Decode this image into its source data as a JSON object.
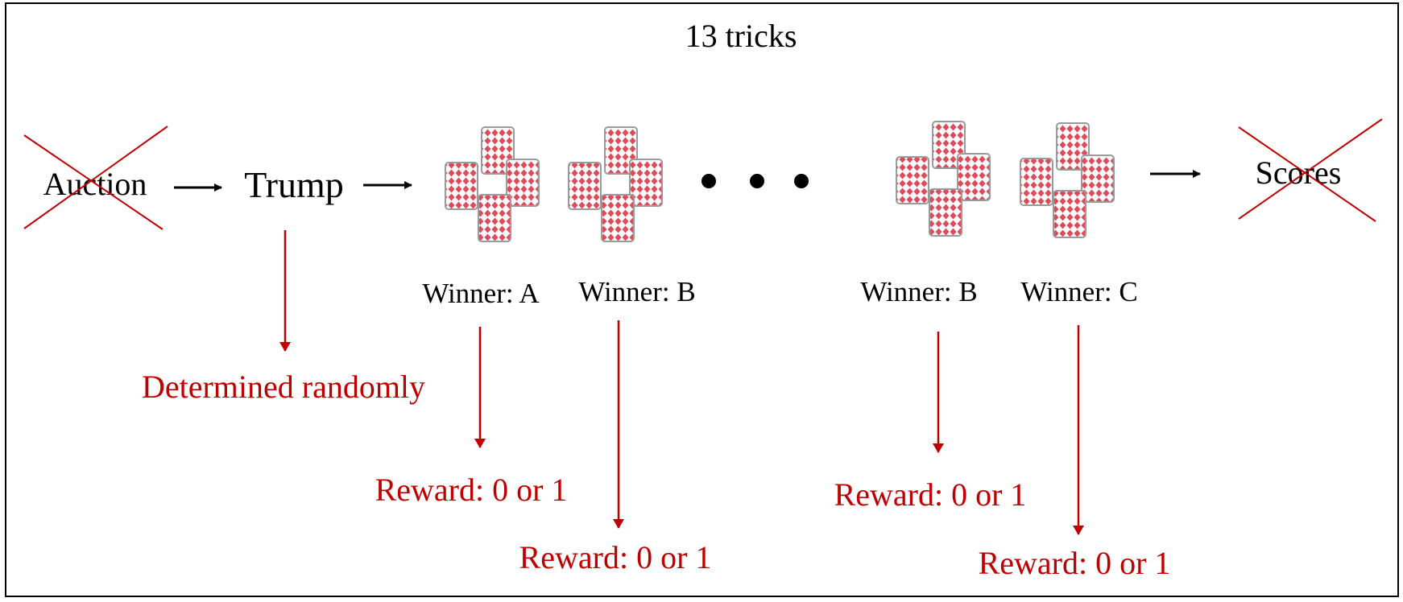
{
  "header": {
    "title": "13 tricks"
  },
  "stages": {
    "auction": "Auction",
    "trump": "Trump",
    "scores": "Scores"
  },
  "trump_note": "Determined randomly",
  "tricks": [
    {
      "winner_label": "Winner: A",
      "reward_label": "Reward: 0 or 1"
    },
    {
      "winner_label": "Winner: B",
      "reward_label": "Reward: 0 or 1"
    },
    {
      "winner_label": "Winner: B",
      "reward_label": "Reward: 0 or 1"
    },
    {
      "winner_label": "Winner: C",
      "reward_label": "Reward: 0 or 1"
    }
  ],
  "colors": {
    "accent_red": "#c00000",
    "card_red": "#e04a5a",
    "border": "#000000"
  }
}
